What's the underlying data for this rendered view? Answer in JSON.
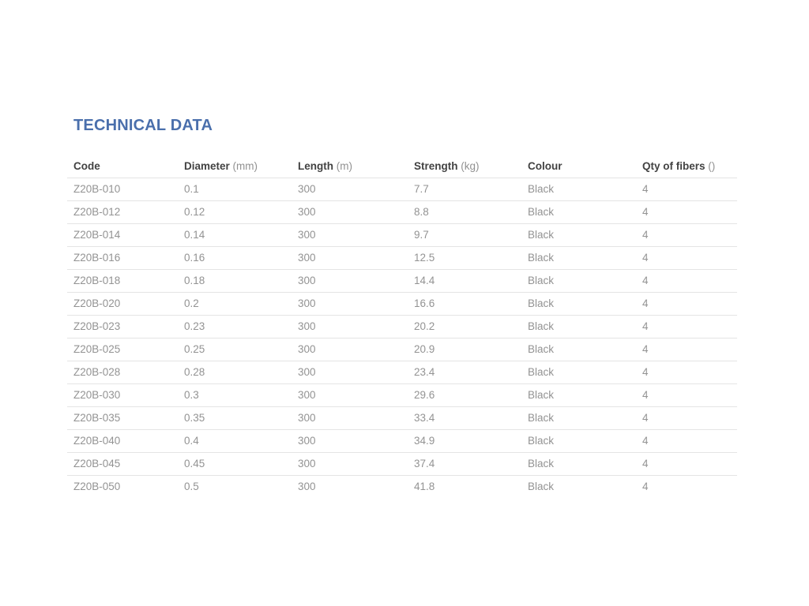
{
  "page": {
    "title": "TECHNICAL DATA"
  },
  "colors": {
    "title_color": "#4a6fac",
    "header_text": "#424242",
    "unit_text": "#919191",
    "cell_text": "#939393",
    "border_color": "#e4e4e4"
  },
  "table": {
    "columns": [
      {
        "label": "Code",
        "unit": ""
      },
      {
        "label": "Diameter",
        "unit": "(mm)"
      },
      {
        "label": "Length",
        "unit": "(m)"
      },
      {
        "label": "Strength",
        "unit": "(kg)"
      },
      {
        "label": "Colour",
        "unit": ""
      },
      {
        "label": "Qty of fibers",
        "unit": "()"
      }
    ],
    "rows": [
      [
        "Z20B-010",
        "0.1",
        "300",
        "7.7",
        "Black",
        "4"
      ],
      [
        "Z20B-012",
        "0.12",
        "300",
        "8.8",
        "Black",
        "4"
      ],
      [
        "Z20B-014",
        "0.14",
        "300",
        "9.7",
        "Black",
        "4"
      ],
      [
        "Z20B-016",
        "0.16",
        "300",
        "12.5",
        "Black",
        "4"
      ],
      [
        "Z20B-018",
        "0.18",
        "300",
        "14.4",
        "Black",
        "4"
      ],
      [
        "Z20B-020",
        "0.2",
        "300",
        "16.6",
        "Black",
        "4"
      ],
      [
        "Z20B-023",
        "0.23",
        "300",
        "20.2",
        "Black",
        "4"
      ],
      [
        "Z20B-025",
        "0.25",
        "300",
        "20.9",
        "Black",
        "4"
      ],
      [
        "Z20B-028",
        "0.28",
        "300",
        "23.4",
        "Black",
        "4"
      ],
      [
        "Z20B-030",
        "0.3",
        "300",
        "29.6",
        "Black",
        "4"
      ],
      [
        "Z20B-035",
        "0.35",
        "300",
        "33.4",
        "Black",
        "4"
      ],
      [
        "Z20B-040",
        "0.4",
        "300",
        "34.9",
        "Black",
        "4"
      ],
      [
        "Z20B-045",
        "0.45",
        "300",
        "37.4",
        "Black",
        "4"
      ],
      [
        "Z20B-050",
        "0.5",
        "300",
        "41.8",
        "Black",
        "4"
      ]
    ]
  }
}
